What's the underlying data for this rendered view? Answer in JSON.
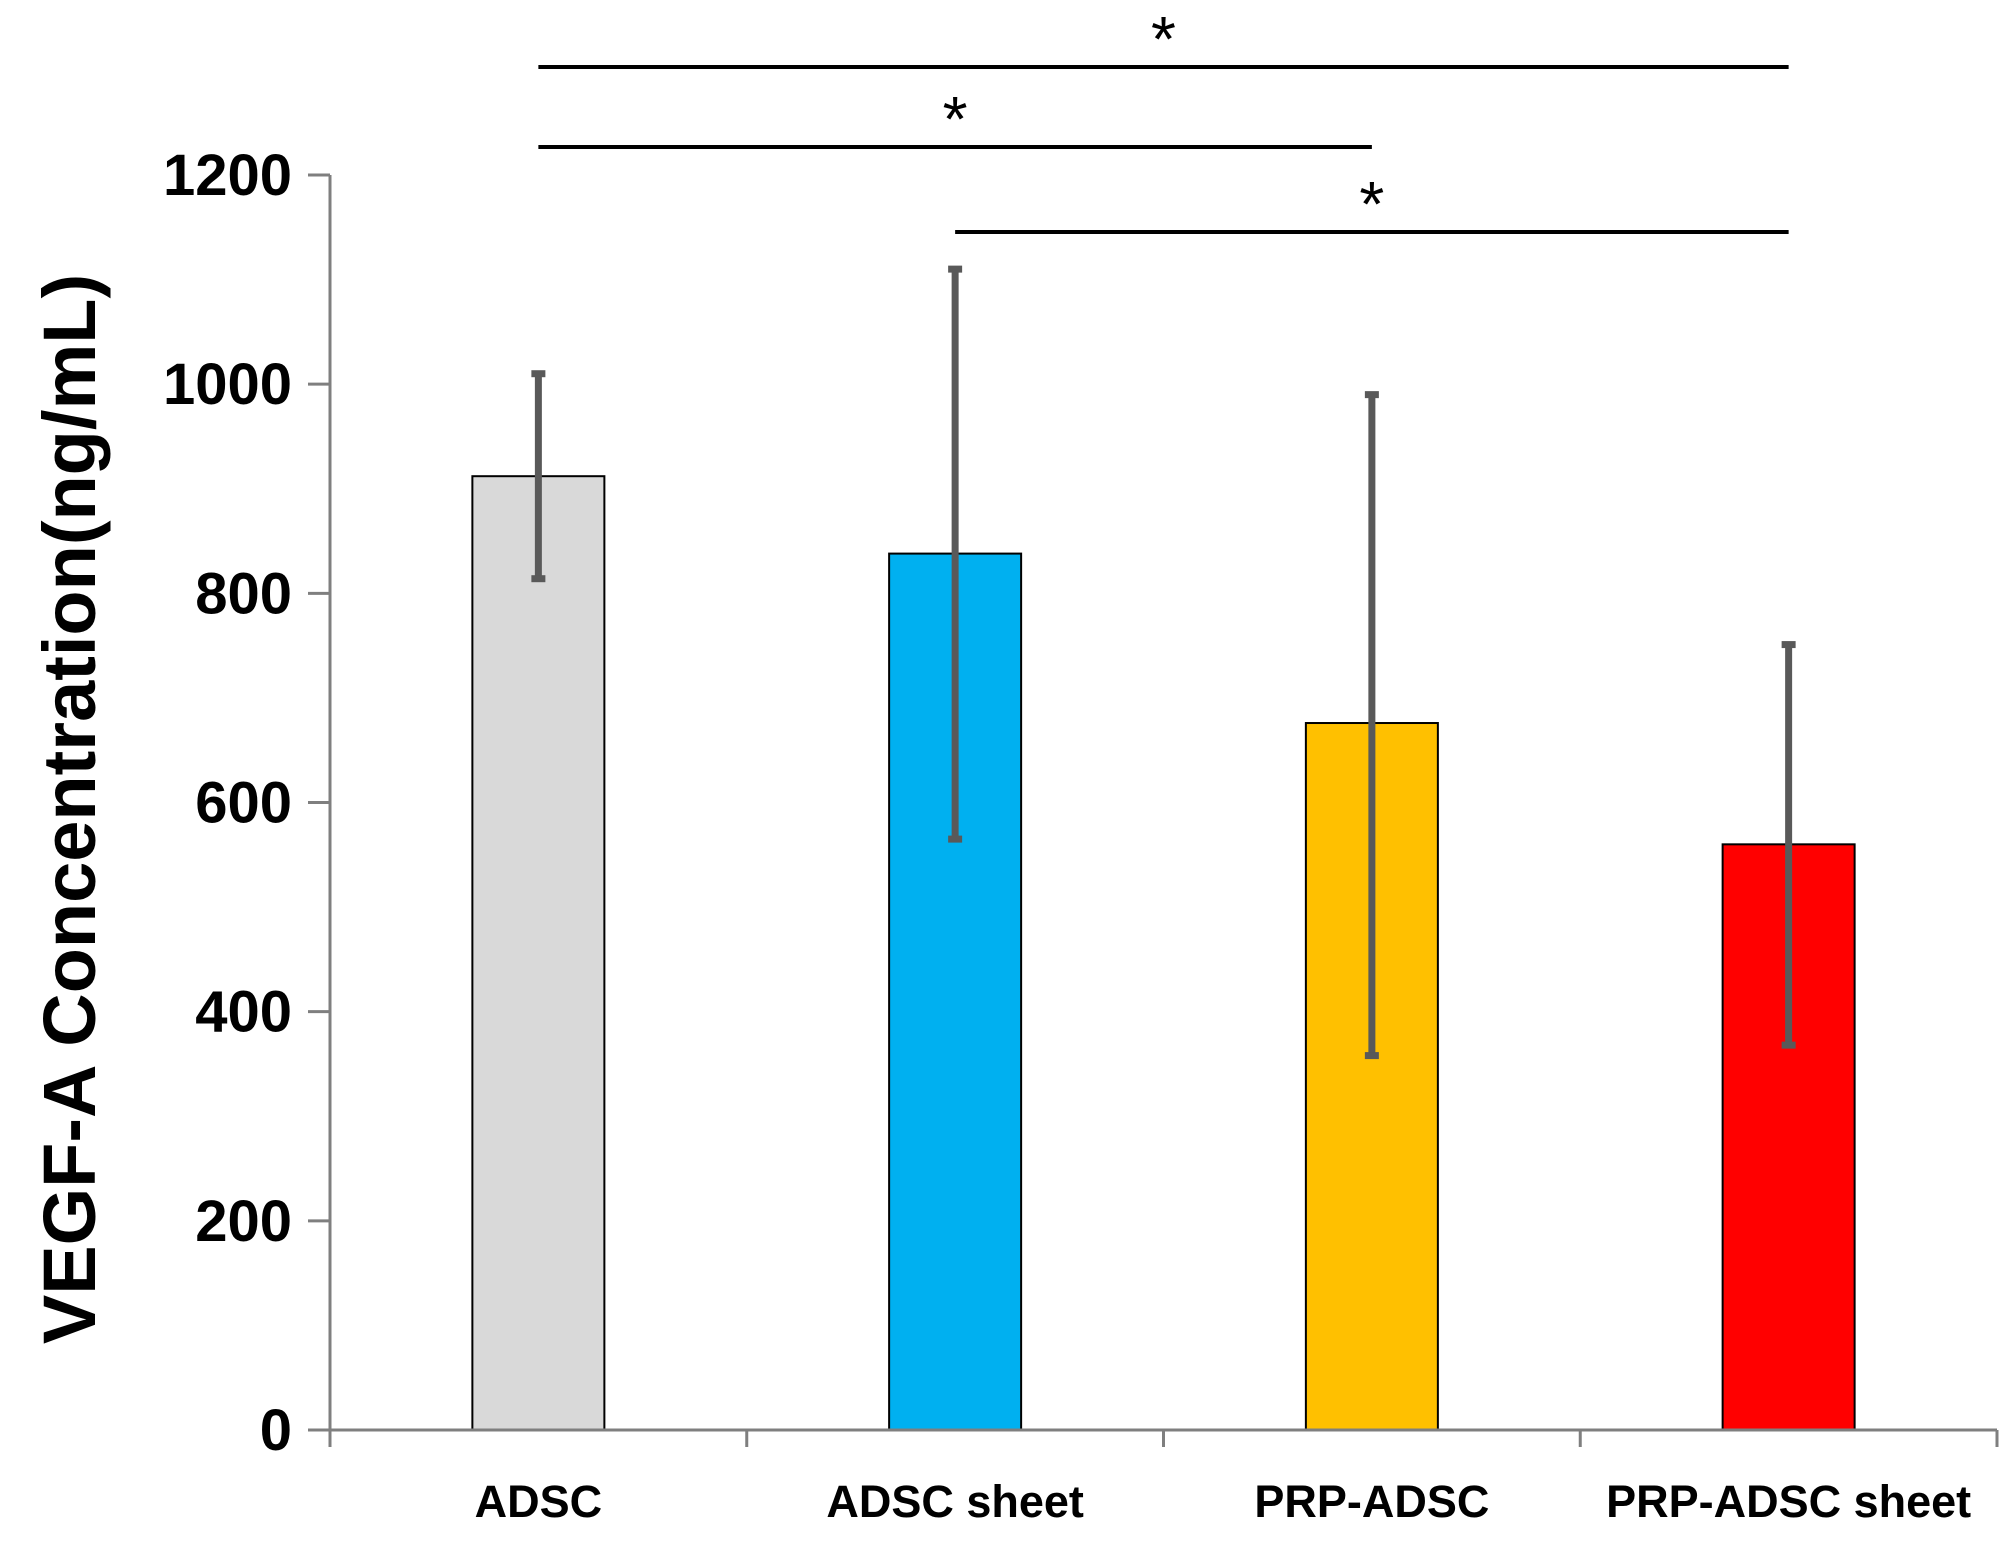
{
  "chart_data": {
    "type": "bar",
    "title": "",
    "xlabel": "",
    "ylabel": "VEGF-A Concentration(ng/mL)",
    "ylim": [
      0,
      1200
    ],
    "yticks": [
      0,
      200,
      400,
      600,
      800,
      1000,
      1200
    ],
    "ytick_labels": [
      "0",
      "200",
      "400",
      "600",
      "800",
      "1000",
      "1200"
    ],
    "grid": false,
    "legend": "none",
    "categories": [
      "ADSC",
      "ADSC sheet",
      "PRP-ADSC",
      "PRP-ADSC sheet"
    ],
    "series": [
      {
        "name": "VEGF-A",
        "values": [
          912,
          838,
          676,
          560
        ],
        "error_low": [
          814,
          565,
          358,
          368
        ],
        "error_high": [
          1010,
          1110,
          990,
          751
        ],
        "colors": [
          "#d9d9d9",
          "#00b0f0",
          "#ffc000",
          "#ff0000"
        ]
      }
    ],
    "significance": [
      {
        "from": "ADSC",
        "to": "PRP-ADSC sheet",
        "label": "*",
        "level": 1
      },
      {
        "from": "ADSC",
        "to": "PRP-ADSC",
        "label": "*",
        "level": 2
      },
      {
        "from": "ADSC sheet",
        "to": "PRP-ADSC sheet",
        "label": "*",
        "level": 3
      }
    ]
  }
}
